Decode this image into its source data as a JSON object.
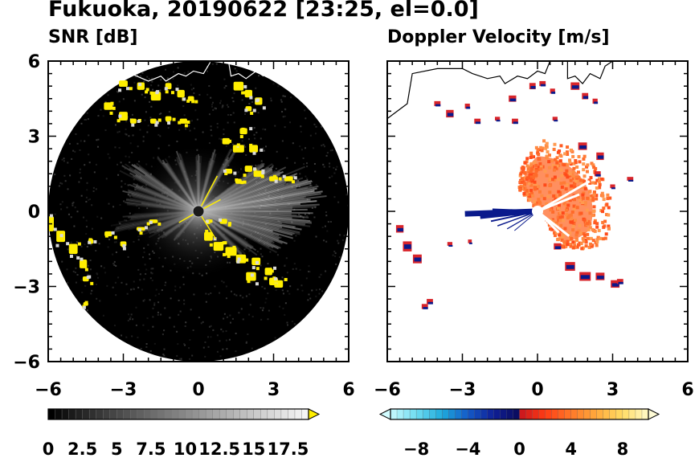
{
  "title": "Fukuoka, 20190622 [23:25, el=0.0]",
  "chart_data": [
    {
      "type": "heatmap",
      "title": "SNR [dB]",
      "xlim": [
        -6,
        6
      ],
      "ylim": [
        -6,
        6
      ],
      "xticks": [
        "−6",
        "−3",
        "0",
        "3",
        "6"
      ],
      "yticks": [
        "6",
        "3",
        "0",
        "−3",
        "−6"
      ],
      "colorbar": {
        "range": [
          0,
          19
        ],
        "ticks": [
          "0",
          "2.5",
          "5",
          "7.5",
          "10",
          "12.5",
          "15",
          "17.5"
        ],
        "extend": "max",
        "colormap": "black-to-white, yellow above max"
      },
      "coverage_radius": 6,
      "background_color": "#000000",
      "highlight_color": "#ffee00",
      "grid": false
    },
    {
      "type": "heatmap",
      "title": "Doppler Velocity [m/s]",
      "xlim": [
        -6,
        6
      ],
      "ylim": [
        -6,
        6
      ],
      "xticks": [
        "−6",
        "−3",
        "0",
        "3",
        "6"
      ],
      "colorbar": {
        "range": [
          -10,
          10
        ],
        "ticks": [
          "−8",
          "−4",
          "0",
          "4",
          "8"
        ],
        "extend": "both",
        "colormap": "light-cyan to navy (negative), red to light-yellow (positive)"
      },
      "negative_color": "#0a1a8c",
      "positive_color": "#ff5a1e",
      "grid": false
    }
  ]
}
